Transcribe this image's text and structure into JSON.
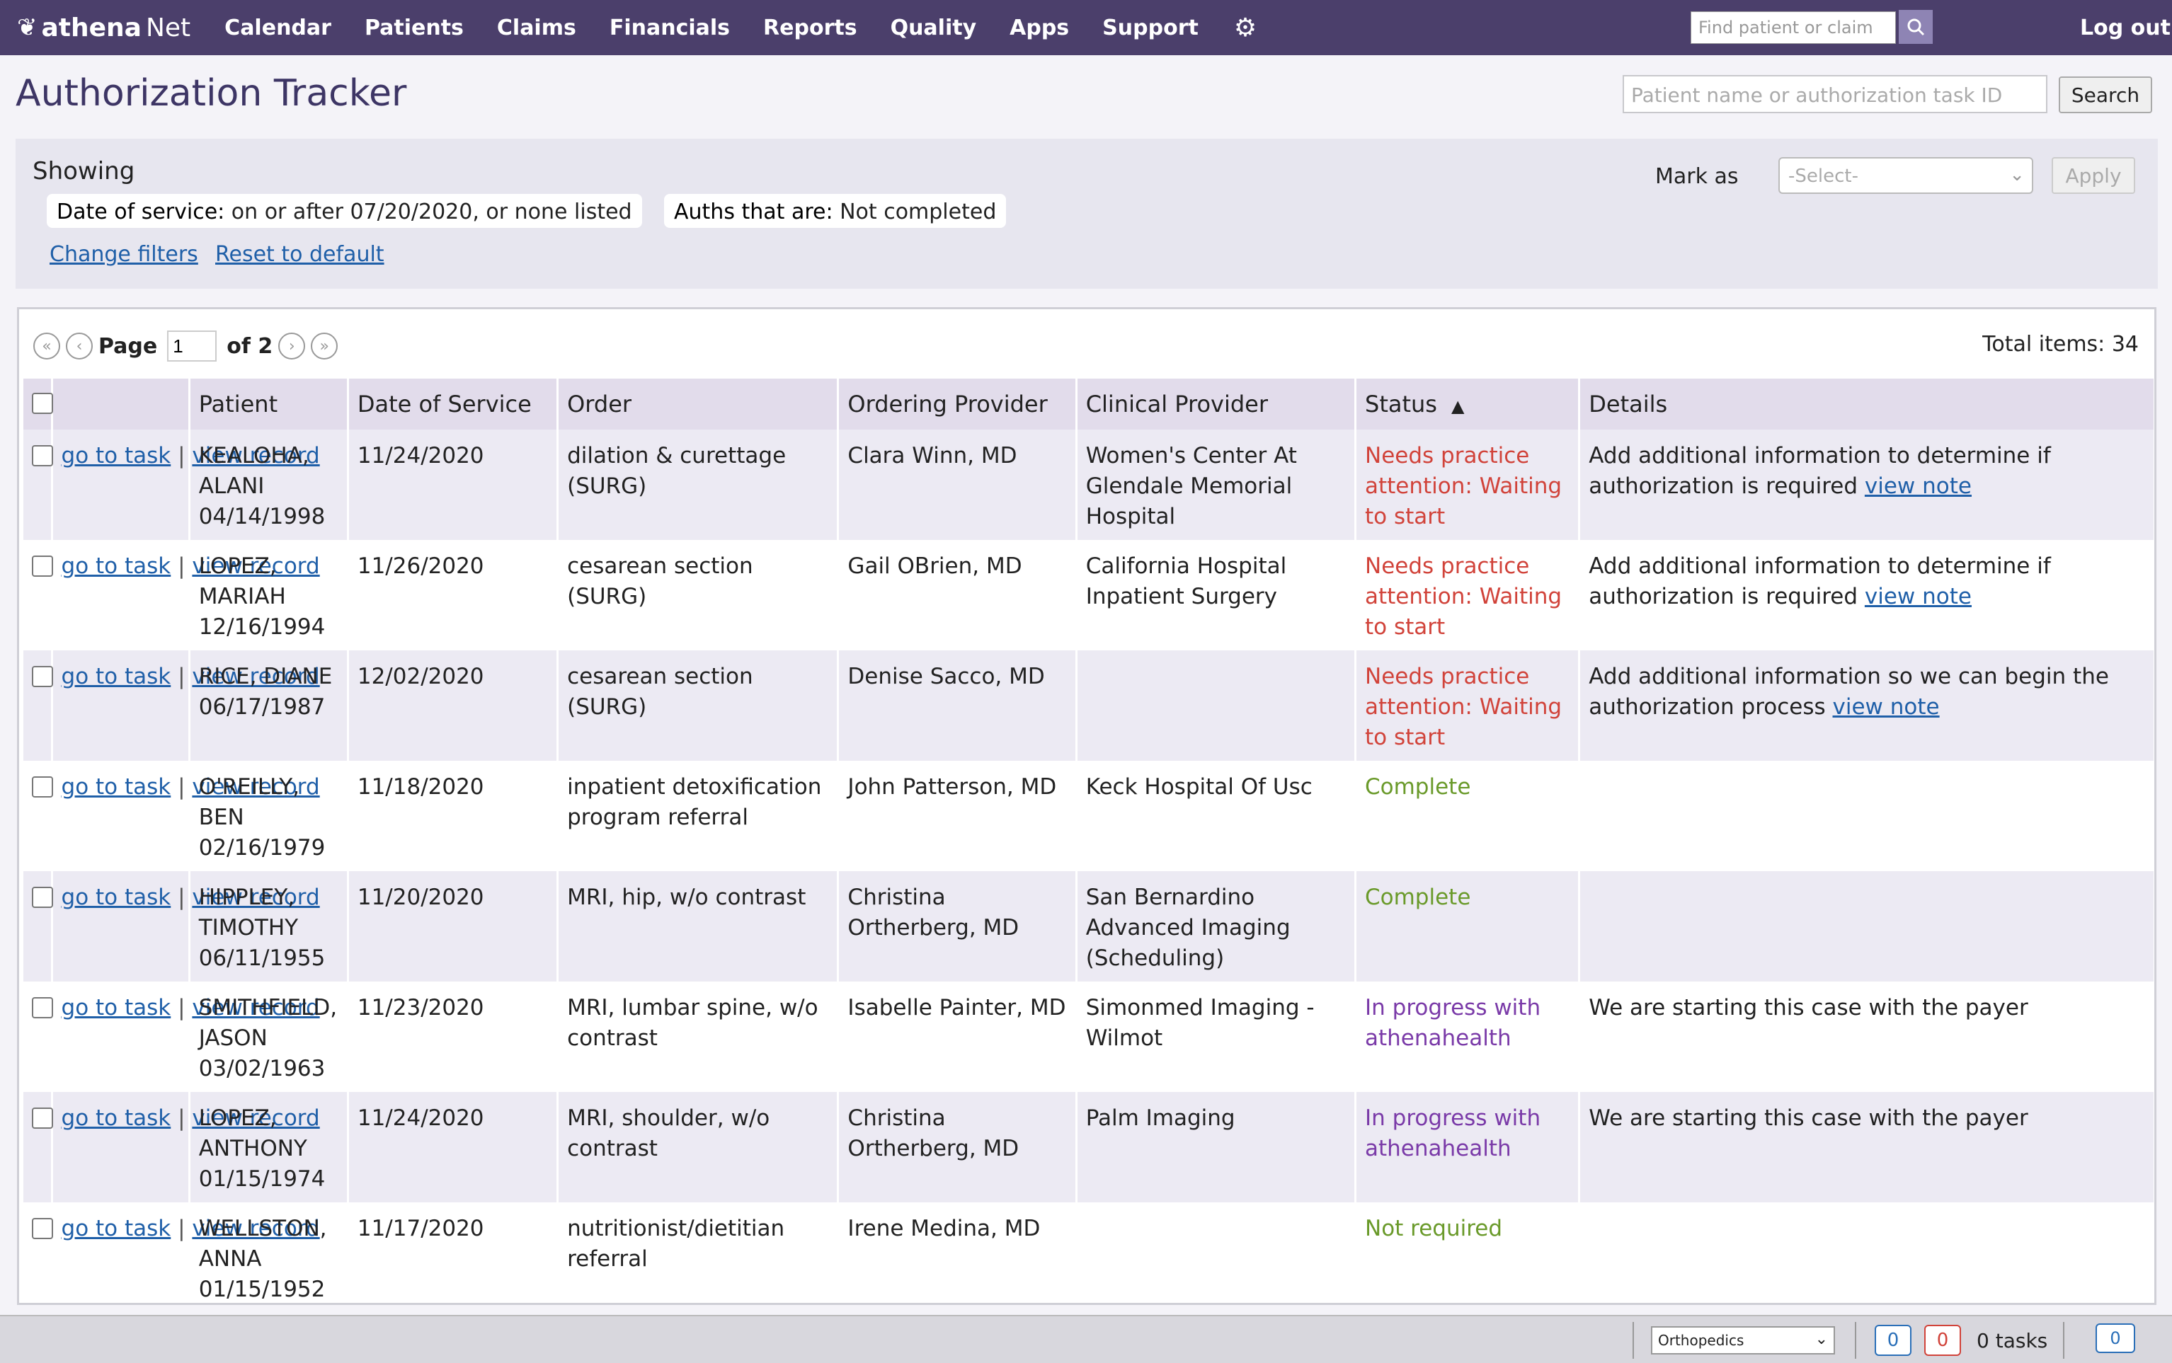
{
  "nav": {
    "logo_main": "athena",
    "logo_suffix": "Net",
    "items": [
      "Calendar",
      "Patients",
      "Claims",
      "Financials",
      "Reports",
      "Quality",
      "Apps",
      "Support"
    ],
    "search_placeholder": "Find patient or claim",
    "logout": "Log out"
  },
  "header": {
    "title": "Authorization Tracker",
    "search_placeholder": "Patient name or authorization task ID",
    "search_button": "Search"
  },
  "filters": {
    "showing_label": "Showing",
    "chip1_label": "Date of service:",
    "chip1_value": " on or after 07/20/2020, or none listed",
    "chip2_label": "Auths that are:",
    "chip2_value": " Not completed",
    "change_filters": "Change filters",
    "reset_default": "Reset to default",
    "mark_as_label": "Mark as",
    "mark_as_select": "-Select-",
    "apply": "Apply"
  },
  "pager": {
    "page_label": "Page",
    "page_value": "1",
    "of_label": "of 2",
    "total": "Total items: 34"
  },
  "table": {
    "headers": [
      "",
      "",
      "Patient",
      "Date of Service",
      "Order",
      "Ordering Provider",
      "Clinical Provider",
      "Status",
      "Details"
    ],
    "go_to_task": "go to task",
    "view_record": "view record",
    "view_note": "view note",
    "rows": [
      {
        "patient": "KEALOHA, ALANI 04/14/1998",
        "dos": "11/24/2020",
        "order": "dilation & curettage (SURG)",
        "ordering": "Clara Winn, MD",
        "clinical": "Women's Center At Glendale Memorial Hospital",
        "status": "Needs practice attention: Waiting to start",
        "status_kind": "red",
        "details": "Add additional information to determine if authorization is required",
        "has_note": true
      },
      {
        "patient": "LOPEZ, MARIAH 12/16/1994",
        "dos": "11/26/2020",
        "order": "cesarean section (SURG)",
        "ordering": "Gail OBrien, MD",
        "clinical": "California Hospital Inpatient Surgery",
        "status": "Needs practice attention: Waiting to start",
        "status_kind": "red",
        "details": "Add additional information to determine if authorization is required",
        "has_note": true
      },
      {
        "patient": "RICE, DIANE 06/17/1987",
        "dos": "12/02/2020",
        "order": "cesarean section (SURG)",
        "ordering": "Denise Sacco, MD",
        "clinical": "",
        "status": "Needs practice attention: Waiting to start",
        "status_kind": "red",
        "details": "Add additional information so we can begin the authorization process",
        "has_note": true
      },
      {
        "patient": "O'REILLY, BEN 02/16/1979",
        "dos": "11/18/2020",
        "order": "inpatient detoxification program referral",
        "ordering": "John Patterson, MD",
        "clinical": "Keck Hospital Of Usc",
        "status": "Complete",
        "status_kind": "green",
        "details": "",
        "has_note": false
      },
      {
        "patient": "HIPPLEY, TIMOTHY 06/11/1955",
        "dos": "11/20/2020",
        "order": "MRI, hip, w/o contrast",
        "ordering": "Christina Ortherberg, MD",
        "clinical": "San Bernardino Advanced Imaging (Scheduling)",
        "status": "Complete",
        "status_kind": "green",
        "details": "",
        "has_note": false
      },
      {
        "patient": "SMITHFIELD, JASON 03/02/1963",
        "dos": "11/23/2020",
        "order": "MRI, lumbar spine, w/o contrast",
        "ordering": "Isabelle Painter, MD",
        "clinical": "Simonmed Imaging - Wilmot",
        "status": "In progress with athenahealth",
        "status_kind": "purple",
        "details": "We are starting this case with the payer",
        "has_note": false
      },
      {
        "patient": "LOPEZ, ANTHONY 01/15/1974",
        "dos": "11/24/2020",
        "order": "MRI, shoulder, w/o contrast",
        "ordering": "Christina Ortherberg, MD",
        "clinical": "Palm Imaging",
        "status": "In progress with athenahealth",
        "status_kind": "purple",
        "details": "We are starting this case with the payer",
        "has_note": false
      },
      {
        "patient": "WELLSTON, ANNA 01/15/1952",
        "dos": "11/17/2020",
        "order": "nutritionist/dietitian referral",
        "ordering": "Irene Medina, MD",
        "clinical": "",
        "status": "Not required",
        "status_kind": "green",
        "details": "",
        "has_note": false
      }
    ]
  },
  "footer": {
    "dept_select": "Orthopedics",
    "badge_blue": "0",
    "badge_red": "0",
    "tasks_label": "0 tasks",
    "chat_count": "0"
  },
  "colors": {
    "nav_bg": "#4b3f6b",
    "status_red": "#d1433a",
    "status_green": "#6a9a2a",
    "status_purple": "#7a3aa8",
    "link": "#1f5fa8"
  }
}
